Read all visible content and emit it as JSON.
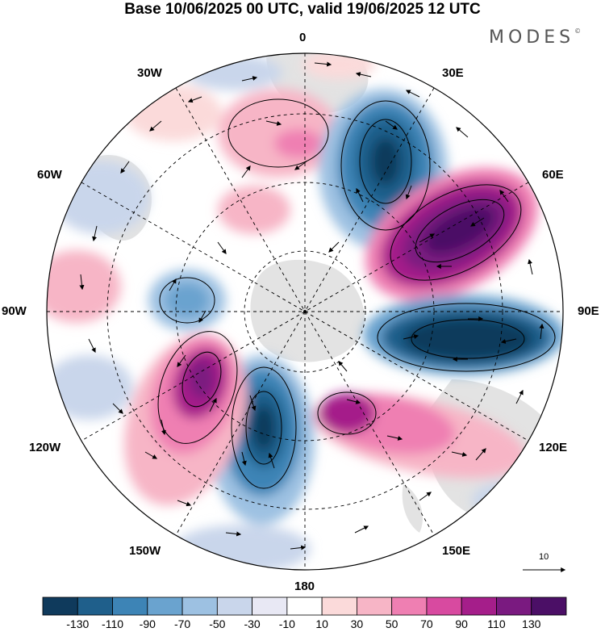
{
  "title": "Base 10/06/2025 00 UTC, valid 19/06/2025 12 UTC",
  "brand": "MODES",
  "brand_mark": "©",
  "longitude_labels": {
    "lon_0": "0",
    "lon_30e": "30E",
    "lon_60e": "60E",
    "lon_90e": "90E",
    "lon_120e": "120E",
    "lon_150e": "150E",
    "lon_180": "180",
    "lon_150w": "150W",
    "lon_120w": "120W",
    "lon_90w": "90W",
    "lon_60w": "60W",
    "lon_30w": "30W"
  },
  "projection": "south polar stereographic",
  "reference_vector": {
    "label": "10",
    "magnitude": 10
  },
  "colorbar": {
    "labels": [
      "-130",
      "-110",
      "-90",
      "-70",
      "-50",
      "-30",
      "-10",
      "10",
      "30",
      "50",
      "70",
      "90",
      "110",
      "130"
    ],
    "colors": [
      "#0f3a5c",
      "#1f5f8b",
      "#3d84b6",
      "#6aa3cf",
      "#9dc1e2",
      "#c9d6eb",
      "#e8e8f4",
      "#ffffff",
      "#fbdada",
      "#f7b5c6",
      "#ef7fb2",
      "#d84aa0",
      "#a51e8a",
      "#7a1a80",
      "#4b0f66"
    ]
  },
  "colors": {
    "land": "#e6e6e6",
    "background": "#ffffff"
  }
}
